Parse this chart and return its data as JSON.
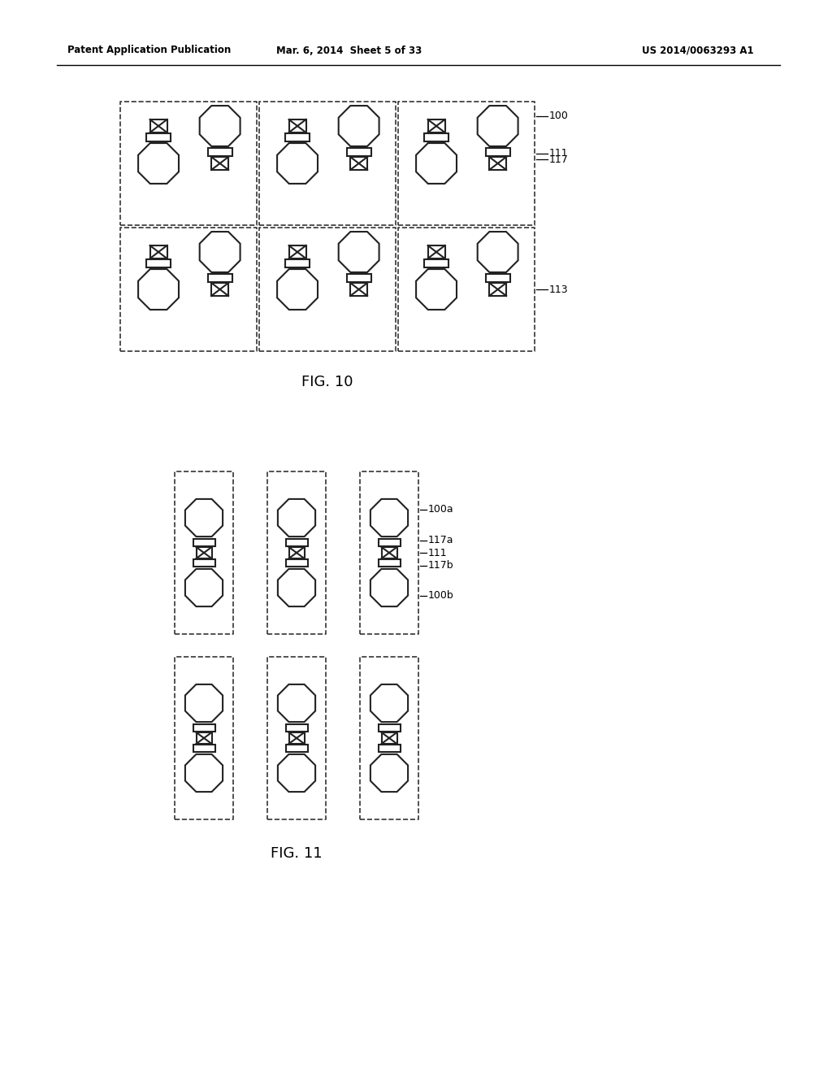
{
  "bg_color": "#ffffff",
  "header_left": "Patent Application Publication",
  "header_mid": "Mar. 6, 2014  Sheet 5 of 33",
  "header_right": "US 2014/0063293 A1",
  "fig10_label": "FIG. 10",
  "fig11_label": "FIG. 11",
  "label_100": "100",
  "label_117": "117",
  "label_111": "111",
  "label_113": "113",
  "label_100a": "100a",
  "label_117a": "117a",
  "label_111b": "111",
  "label_117b": "117b",
  "label_100b": "100b"
}
